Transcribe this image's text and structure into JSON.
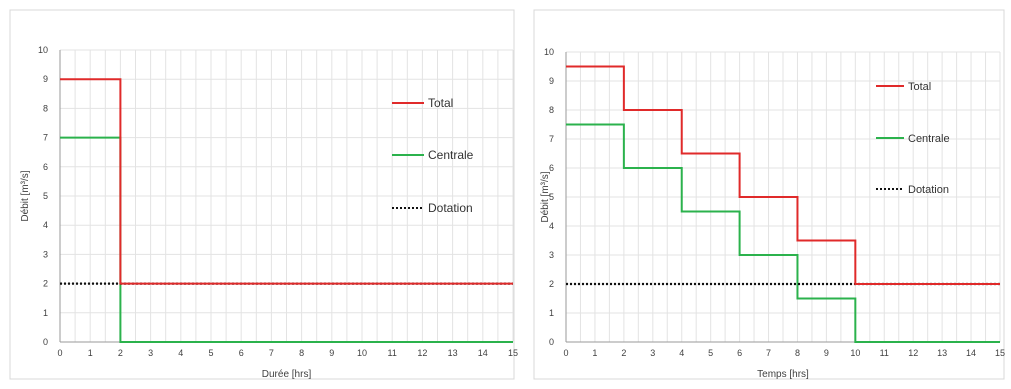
{
  "colors": {
    "total": "#e02a2a",
    "centrale": "#2bb24c",
    "dotation": "#111111",
    "grid": "#e3e3e3",
    "axis": "#9a9a9a",
    "frame": "#d8d8d8"
  },
  "chart_data": [
    {
      "type": "line",
      "title": "",
      "xlabel": "Durée [hrs]",
      "ylabel": "Débit [m³/s]",
      "xlim": [
        0,
        15
      ],
      "ylim": [
        0,
        10
      ],
      "xticks": [
        "0",
        "1",
        "2",
        "3",
        "4",
        "5",
        "6",
        "7",
        "8",
        "9",
        "10",
        "11",
        "12",
        "13",
        "14",
        "15"
      ],
      "yticks": [
        "0",
        "1",
        "2",
        "3",
        "4",
        "5",
        "6",
        "7",
        "8",
        "9",
        "10"
      ],
      "grid": true,
      "legend_position": "right",
      "series": [
        {
          "name": "Total",
          "color_key": "total",
          "dash": "solid",
          "points": [
            [
              0,
              9
            ],
            [
              2,
              9
            ],
            [
              2,
              2
            ],
            [
              15,
              2
            ]
          ]
        },
        {
          "name": "Centrale",
          "color_key": "centrale",
          "dash": "solid",
          "points": [
            [
              0,
              7
            ],
            [
              2,
              7
            ],
            [
              2,
              0
            ],
            [
              15,
              0
            ]
          ]
        },
        {
          "name": "Dotation",
          "color_key": "dotation",
          "dash": "dotted",
          "points": [
            [
              0,
              2
            ],
            [
              15,
              2
            ]
          ]
        }
      ]
    },
    {
      "type": "line",
      "title": "",
      "xlabel": "Temps [hrs]",
      "ylabel": "Débit [m³/s]",
      "xlim": [
        0,
        15
      ],
      "ylim": [
        0,
        10
      ],
      "xticks": [
        "0",
        "1",
        "2",
        "3",
        "4",
        "5",
        "6",
        "7",
        "8",
        "9",
        "10",
        "11",
        "12",
        "13",
        "14",
        "15"
      ],
      "yticks": [
        "0",
        "1",
        "2",
        "3",
        "4",
        "5",
        "6",
        "7",
        "8",
        "9",
        "10"
      ],
      "grid": true,
      "legend_position": "right",
      "series": [
        {
          "name": "Total",
          "color_key": "total",
          "dash": "solid",
          "points": [
            [
              0,
              9.5
            ],
            [
              2,
              9.5
            ],
            [
              2,
              8
            ],
            [
              4,
              8
            ],
            [
              4,
              6.5
            ],
            [
              6,
              6.5
            ],
            [
              6,
              5
            ],
            [
              8,
              5
            ],
            [
              8,
              3.5
            ],
            [
              10,
              3.5
            ],
            [
              10,
              2
            ],
            [
              15,
              2
            ]
          ]
        },
        {
          "name": "Centrale",
          "color_key": "centrale",
          "dash": "solid",
          "points": [
            [
              0,
              7.5
            ],
            [
              2,
              7.5
            ],
            [
              2,
              6
            ],
            [
              4,
              6
            ],
            [
              4,
              4.5
            ],
            [
              6,
              4.5
            ],
            [
              6,
              3
            ],
            [
              8,
              3
            ],
            [
              8,
              1.5
            ],
            [
              10,
              1.5
            ],
            [
              10,
              0
            ],
            [
              15,
              0
            ]
          ]
        },
        {
          "name": "Dotation",
          "color_key": "dotation",
          "dash": "dotted",
          "points": [
            [
              0,
              2
            ],
            [
              15,
              2
            ]
          ]
        }
      ]
    }
  ]
}
